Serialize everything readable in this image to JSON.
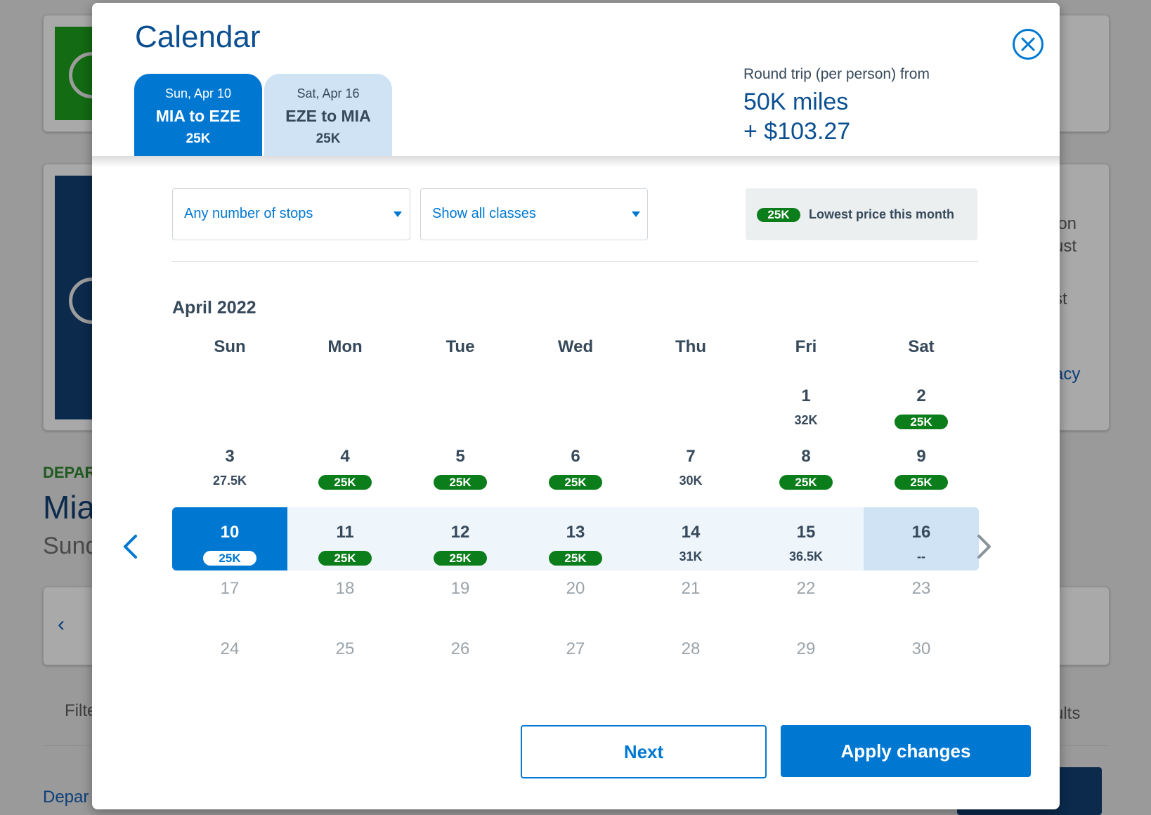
{
  "background": {
    "departing_label": "DEPAR",
    "city_partial": "Mia",
    "date_partial": "Sund",
    "prev_arrow": "‹",
    "filter_partial": "Filte",
    "depart_partial": "Depar",
    "right_text_1": "ion",
    "right_text_2": "ust",
    "right_text_3": "st",
    "right_link": "acy",
    "right_results": "ults"
  },
  "modal": {
    "title": "Calendar",
    "close_icon": "close-icon",
    "legs": [
      {
        "date": "Sun, Apr 10",
        "route": "MIA to EZE",
        "price": "25K",
        "active": true
      },
      {
        "date": "Sat, Apr 16",
        "route": "EZE to MIA",
        "price": "25K",
        "active": false
      }
    ],
    "summary": {
      "caption": "Round trip (per person) from",
      "miles": "50K miles",
      "cash": "+ $103.27"
    },
    "filters": {
      "stops": "Any number of stops",
      "classes": "Show all classes"
    },
    "legend": {
      "pill": "25K",
      "text": "Lowest price this month"
    },
    "month": "April 2022",
    "weekdays": [
      "Sun",
      "Mon",
      "Tue",
      "Wed",
      "Thu",
      "Fri",
      "Sat"
    ],
    "days": [
      {
        "n": "1",
        "price": "32K",
        "low": false
      },
      {
        "n": "2",
        "price": "25K",
        "low": true
      },
      {
        "n": "3",
        "price": "27.5K",
        "low": false
      },
      {
        "n": "4",
        "price": "25K",
        "low": true
      },
      {
        "n": "5",
        "price": "25K",
        "low": true
      },
      {
        "n": "6",
        "price": "25K",
        "low": true
      },
      {
        "n": "7",
        "price": "30K",
        "low": false
      },
      {
        "n": "8",
        "price": "25K",
        "low": true
      },
      {
        "n": "9",
        "price": "25K",
        "low": true
      },
      {
        "n": "10",
        "price": "25K",
        "low": true,
        "state": "selected"
      },
      {
        "n": "11",
        "price": "25K",
        "low": true
      },
      {
        "n": "12",
        "price": "25K",
        "low": true
      },
      {
        "n": "13",
        "price": "25K",
        "low": true
      },
      {
        "n": "14",
        "price": "31K",
        "low": false
      },
      {
        "n": "15",
        "price": "36.5K",
        "low": false
      },
      {
        "n": "16",
        "price": "--",
        "low": false,
        "state": "return"
      },
      {
        "n": "17",
        "price": "",
        "state": "disabled"
      },
      {
        "n": "18",
        "price": "",
        "state": "disabled"
      },
      {
        "n": "19",
        "price": "",
        "state": "disabled"
      },
      {
        "n": "20",
        "price": "",
        "state": "disabled"
      },
      {
        "n": "21",
        "price": "",
        "state": "disabled"
      },
      {
        "n": "22",
        "price": "",
        "state": "disabled"
      },
      {
        "n": "23",
        "price": "",
        "state": "disabled"
      },
      {
        "n": "24",
        "price": "",
        "state": "disabled"
      },
      {
        "n": "25",
        "price": "",
        "state": "disabled"
      },
      {
        "n": "26",
        "price": "",
        "state": "disabled"
      },
      {
        "n": "27",
        "price": "",
        "state": "disabled"
      },
      {
        "n": "28",
        "price": "",
        "state": "disabled"
      },
      {
        "n": "29",
        "price": "",
        "state": "disabled"
      },
      {
        "n": "30",
        "price": "",
        "state": "disabled"
      }
    ],
    "buttons": {
      "next": "Next",
      "apply": "Apply changes"
    }
  },
  "colors": {
    "accent": "#0078d2",
    "low_price": "#0c7d1b",
    "title": "#0b4f91"
  }
}
